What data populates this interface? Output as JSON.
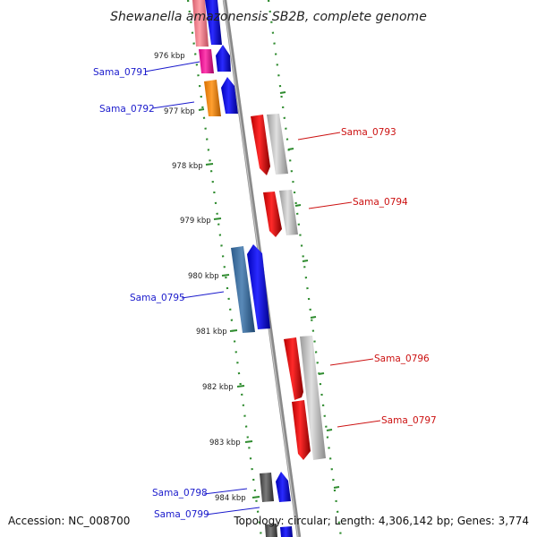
{
  "title": "Shewanella amazonensis SB2B, complete genome",
  "footer": {
    "accession": "Accession: NC_008700",
    "summary": "Topology: circular; Length: 4,306,142 bp; Genes: 3,774"
  },
  "colors": {
    "backbone": "#8a8a8a",
    "dots": "#2e8b2e",
    "forward_label": "#1a1acc",
    "reverse_label": "#cc1111"
  },
  "ticks": [
    "976 kbp",
    "977 kbp",
    "978 kbp",
    "979 kbp",
    "980 kbp",
    "981 kbp",
    "982 kbp",
    "983 kbp",
    "984 kbp"
  ],
  "labels": [
    {
      "text": "Sama_0791",
      "strand": "forward"
    },
    {
      "text": "Sama_0792",
      "strand": "forward"
    },
    {
      "text": "Sama_0793",
      "strand": "reverse"
    },
    {
      "text": "Sama_0794",
      "strand": "reverse"
    },
    {
      "text": "Sama_0795",
      "strand": "forward"
    },
    {
      "text": "Sama_0796",
      "strand": "reverse"
    },
    {
      "text": "Sama_0797",
      "strand": "reverse"
    },
    {
      "text": "Sama_0798",
      "strand": "forward"
    },
    {
      "text": "Sama_0799",
      "strand": "forward"
    }
  ]
}
